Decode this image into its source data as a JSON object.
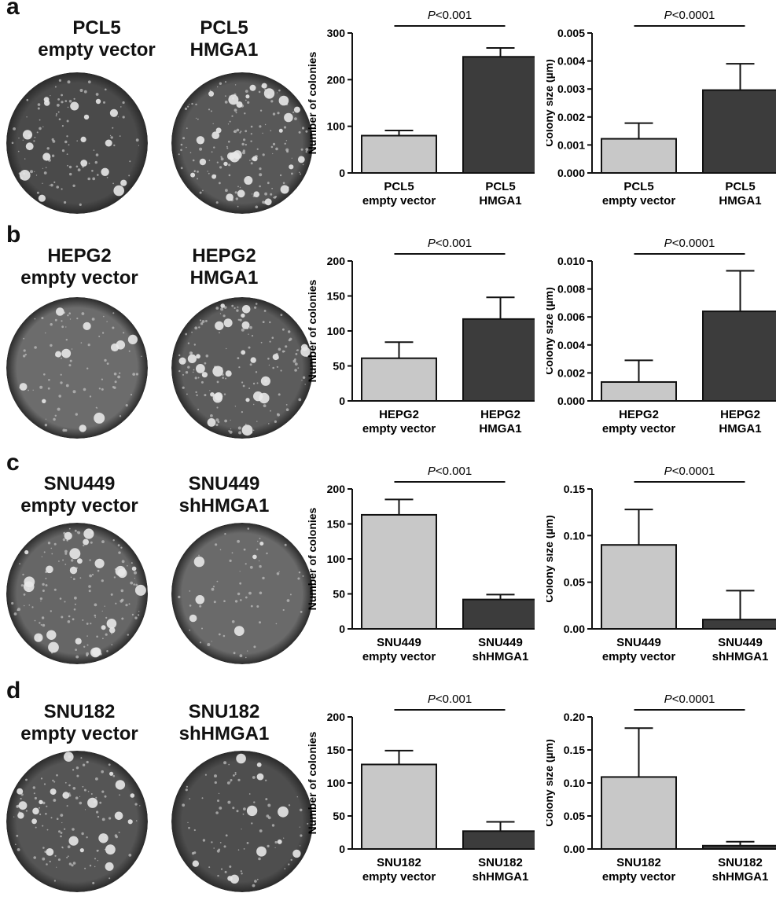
{
  "panels": [
    {
      "letter": "a",
      "dishes": [
        {
          "line1": "PCL5",
          "line2": "empty vector",
          "shade": "#4a4a4a",
          "density": 0.55
        },
        {
          "line1": "PCL5",
          "line2": "HMGA1",
          "shade": "#585858",
          "density": 1.0
        }
      ]
    },
    {
      "letter": "b",
      "dishes": [
        {
          "line1": "HEPG2",
          "line2": "empty vector",
          "shade": "#6c6c6c",
          "density": 0.35
        },
        {
          "line1": "HEPG2",
          "line2": "HMGA1",
          "shade": "#5c5c5c",
          "density": 0.9
        }
      ]
    },
    {
      "letter": "c",
      "dishes": [
        {
          "line1": "SNU449",
          "line2": "empty vector",
          "shade": "#666666",
          "density": 0.8
        },
        {
          "line1": "SNU449",
          "line2": "shHMGA1",
          "shade": "#6a6a6a",
          "density": 0.2
        }
      ]
    },
    {
      "letter": "d",
      "dishes": [
        {
          "line1": "SNU182",
          "line2": "empty vector",
          "shade": "#555555",
          "density": 0.7
        },
        {
          "line1": "SNU182",
          "line2": "shHMGA1",
          "shade": "#4e4e4e",
          "density": 0.35
        }
      ]
    }
  ],
  "chart_data": [
    {
      "type": "bar",
      "panel": "a",
      "ylabel": "Number of colonies",
      "ylim": [
        0,
        300
      ],
      "yticks": [
        "0",
        "100",
        "200",
        "300"
      ],
      "categories": [
        [
          "PCL5",
          "empty vector"
        ],
        [
          "PCL5",
          "HMGA1"
        ]
      ],
      "values": [
        80,
        249
      ],
      "errors": [
        11,
        19
      ],
      "pvalue": "<0.001"
    },
    {
      "type": "bar",
      "panel": "a",
      "ylabel": "Colony size (µm)",
      "ylim": [
        0,
        0.005
      ],
      "yticks": [
        "0.000",
        "0.001",
        "0.002",
        "0.003",
        "0.004",
        "0.005"
      ],
      "categories": [
        [
          "PCL5",
          "empty vector"
        ],
        [
          "PCL5",
          "HMGA1"
        ]
      ],
      "values": [
        0.00122,
        0.00296
      ],
      "errors": [
        0.00056,
        0.00094
      ],
      "pvalue": "<0.0001"
    },
    {
      "type": "bar",
      "panel": "b",
      "ylabel": "Number of colonies",
      "ylim": [
        0,
        200
      ],
      "yticks": [
        "0",
        "50",
        "100",
        "150",
        "200"
      ],
      "categories": [
        [
          "HEPG2",
          "empty vector"
        ],
        [
          "HEPG2",
          "HMGA1"
        ]
      ],
      "values": [
        61,
        117
      ],
      "errors": [
        23,
        31
      ],
      "pvalue": "<0.001"
    },
    {
      "type": "bar",
      "panel": "b",
      "ylabel": "Colony size (µm)",
      "ylim": [
        0,
        0.01
      ],
      "yticks": [
        "0.000",
        "0.002",
        "0.004",
        "0.006",
        "0.008",
        "0.010"
      ],
      "categories": [
        [
          "HEPG2",
          "empty vector"
        ],
        [
          "HEPG2",
          "HMGA1"
        ]
      ],
      "values": [
        0.00135,
        0.0064
      ],
      "errors": [
        0.00155,
        0.0029
      ],
      "pvalue": "<0.0001"
    },
    {
      "type": "bar",
      "panel": "c",
      "ylabel": "Number of colonies",
      "ylim": [
        0,
        200
      ],
      "yticks": [
        "0",
        "50",
        "100",
        "150",
        "200"
      ],
      "categories": [
        [
          "SNU449",
          "empty vector"
        ],
        [
          "SNU449",
          "shHMGA1"
        ]
      ],
      "values": [
        163,
        42
      ],
      "errors": [
        22,
        7
      ],
      "pvalue": "<0.001"
    },
    {
      "type": "bar",
      "panel": "c",
      "ylabel": "Colony size (µm)",
      "ylim": [
        0,
        0.15
      ],
      "yticks": [
        "0.00",
        "0.05",
        "0.10",
        "0.15"
      ],
      "categories": [
        [
          "SNU449",
          "empty vector"
        ],
        [
          "SNU449",
          "shHMGA1"
        ]
      ],
      "values": [
        0.09,
        0.01
      ],
      "errors": [
        0.038,
        0.031
      ],
      "pvalue": "<0.0001"
    },
    {
      "type": "bar",
      "panel": "d",
      "ylabel": "Number of colonies",
      "ylim": [
        0,
        200
      ],
      "yticks": [
        "0",
        "50",
        "100",
        "150",
        "200"
      ],
      "categories": [
        [
          "SNU182",
          "empty vector"
        ],
        [
          "SNU182",
          "shHMGA1"
        ]
      ],
      "values": [
        128,
        27
      ],
      "errors": [
        21,
        14
      ],
      "pvalue": "<0.001"
    },
    {
      "type": "bar",
      "panel": "d",
      "ylabel": "Colony size (µm)",
      "ylim": [
        0,
        0.2
      ],
      "yticks": [
        "0.00",
        "0.05",
        "0.10",
        "0.15",
        "0.20"
      ],
      "categories": [
        [
          "SNU182",
          "empty vector"
        ],
        [
          "SNU182",
          "shHMGA1"
        ]
      ],
      "values": [
        0.109,
        0.005
      ],
      "errors": [
        0.074,
        0.006
      ],
      "pvalue": "<0.0001"
    }
  ],
  "colors": {
    "control_bar": "#c8c8c8",
    "treatment_bar": "#3c3c3c"
  }
}
